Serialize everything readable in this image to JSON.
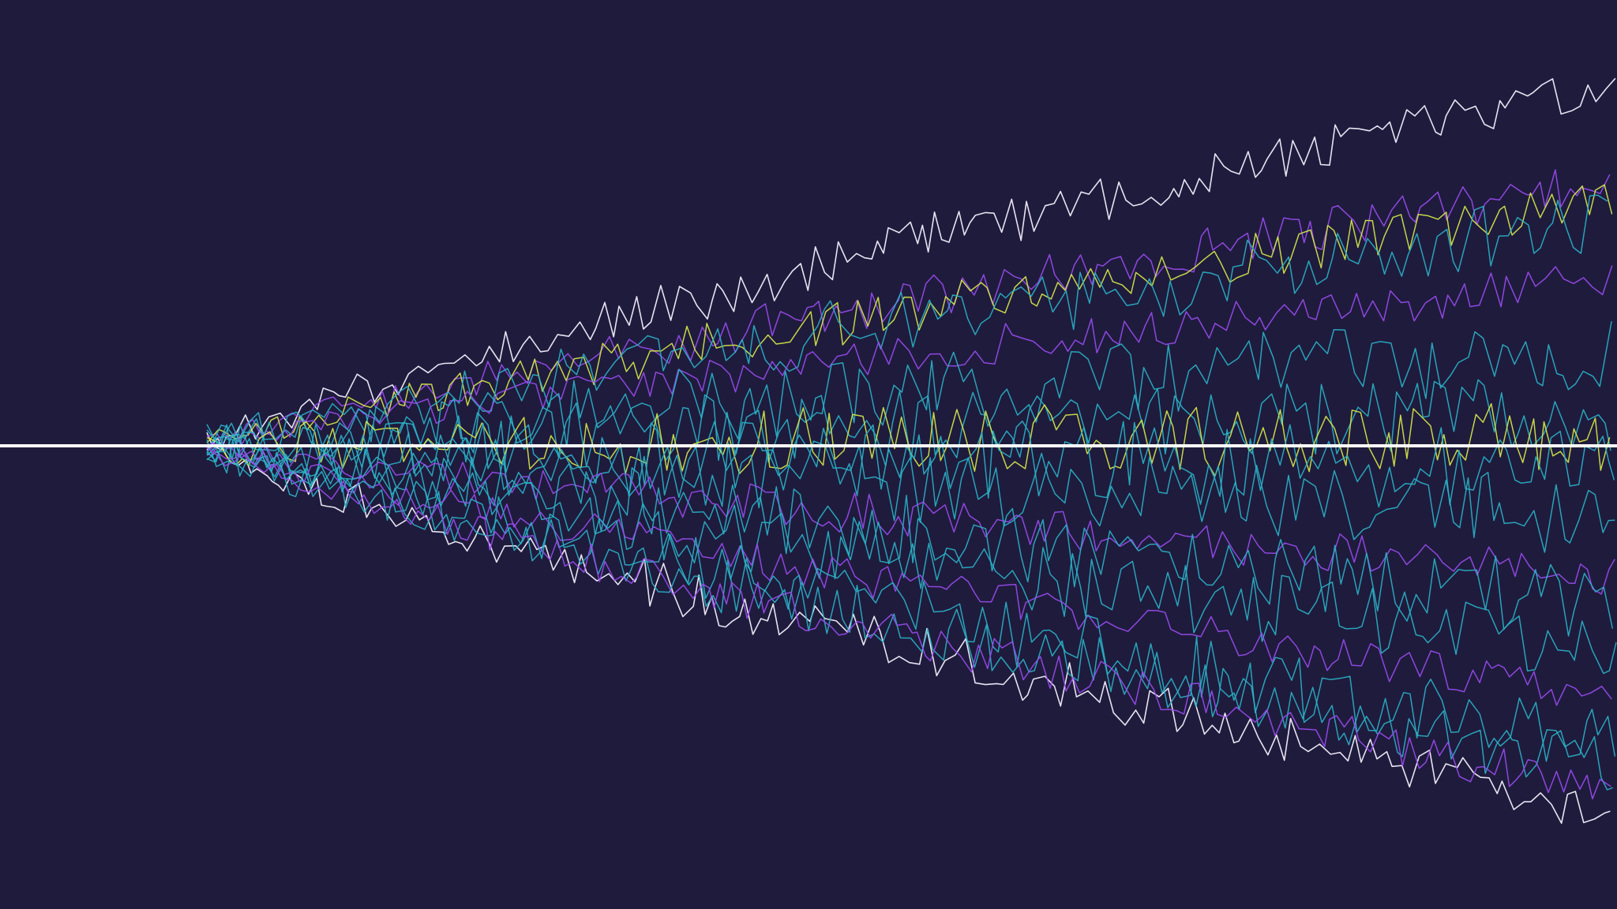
{
  "artwork": {
    "kind": "abstract-waveform-fan",
    "background_color": "#1f1b3d",
    "baseline_color": "#ffffff",
    "palette": [
      "#f2eefb",
      "#9a4df0",
      "#2ab3c7",
      "#d7ea4a"
    ],
    "line_count": 18,
    "has_text": false
  }
}
